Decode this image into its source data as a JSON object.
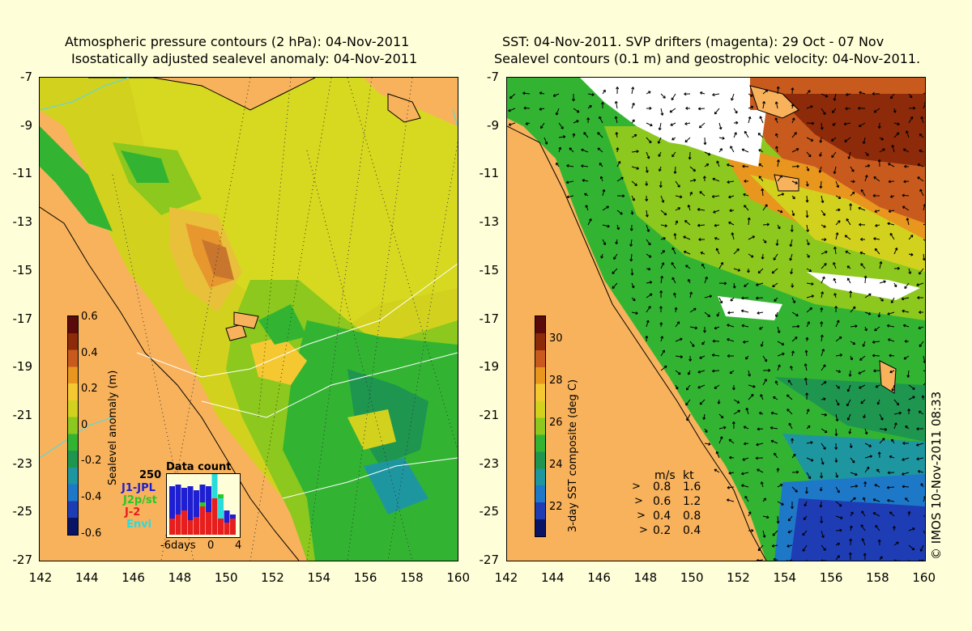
{
  "left_panel": {
    "title_line1": "Atmospheric pressure contours (2 hPa): 04-Nov-2011",
    "title_line2": "Isostatically adjusted sealevel anomaly: 04-Nov-2011",
    "colorbar": {
      "title": "Sealevel anomaly (m)",
      "ticks": [
        "0.6",
        "0.4",
        "0.2",
        "0",
        "-0.2",
        "-0.4",
        "-0.6"
      ],
      "colors": [
        "#5a0a0a",
        "#8c2a0a",
        "#c85a1e",
        "#e8961e",
        "#f5c832",
        "#d2d21e",
        "#8cc81e",
        "#32b432",
        "#1e9650",
        "#1e96a0",
        "#1e78c8",
        "#1e3cb4",
        "#0a1464"
      ]
    },
    "data_count": {
      "title": "Data count",
      "ymax_label": "250",
      "satellites": [
        {
          "name": "J1-JPL",
          "color": "#1e1ed2"
        },
        {
          "name": "J2p/st",
          "color": "#28c828"
        },
        {
          "name": "J-2",
          "color": "#e61e1e"
        },
        {
          "name": "Envi",
          "color": "#28dcdc"
        }
      ],
      "x_labels": [
        "-6days",
        "0",
        "4"
      ]
    }
  },
  "right_panel": {
    "title_line1": "SST: 04-Nov-2011. SVP drifters (magenta): 29 Oct - 07 Nov",
    "title_line2": "Sealevel contours (0.1 m) and geostrophic velocity: 04-Nov-2011.",
    "colorbar": {
      "title": "3-day SST composite (deg C)",
      "ticks": [
        "30",
        "28",
        "26",
        "24",
        "22"
      ],
      "colors": [
        "#5a0a0a",
        "#8c2a0a",
        "#c85a1e",
        "#e8961e",
        "#f5c832",
        "#d2d21e",
        "#8cc81e",
        "#32b432",
        "#1e9650",
        "#1e96a0",
        "#1e78c8",
        "#1e3cb4",
        "#0a1464"
      ]
    },
    "velocity_legend": {
      "header_ms": "m/s",
      "header_kt": "kt",
      "rows": [
        {
          "ms": "0.8",
          "kt": "1.6"
        },
        {
          "ms": "0.6",
          "kt": "1.2"
        },
        {
          "ms": "0.4",
          "kt": "0.8"
        },
        {
          "ms": "0.2",
          "kt": "0.4"
        }
      ]
    },
    "copyright": "© IMOS 10-Nov-2011 08:33"
  },
  "axes": {
    "y_ticks": [
      "-7",
      "-9",
      "-11",
      "-13",
      "-15",
      "-17",
      "-19",
      "-21",
      "-23",
      "-25",
      "-27"
    ],
    "x_ticks": [
      "142",
      "144",
      "146",
      "148",
      "150",
      "152",
      "154",
      "156",
      "158",
      "160"
    ]
  }
}
